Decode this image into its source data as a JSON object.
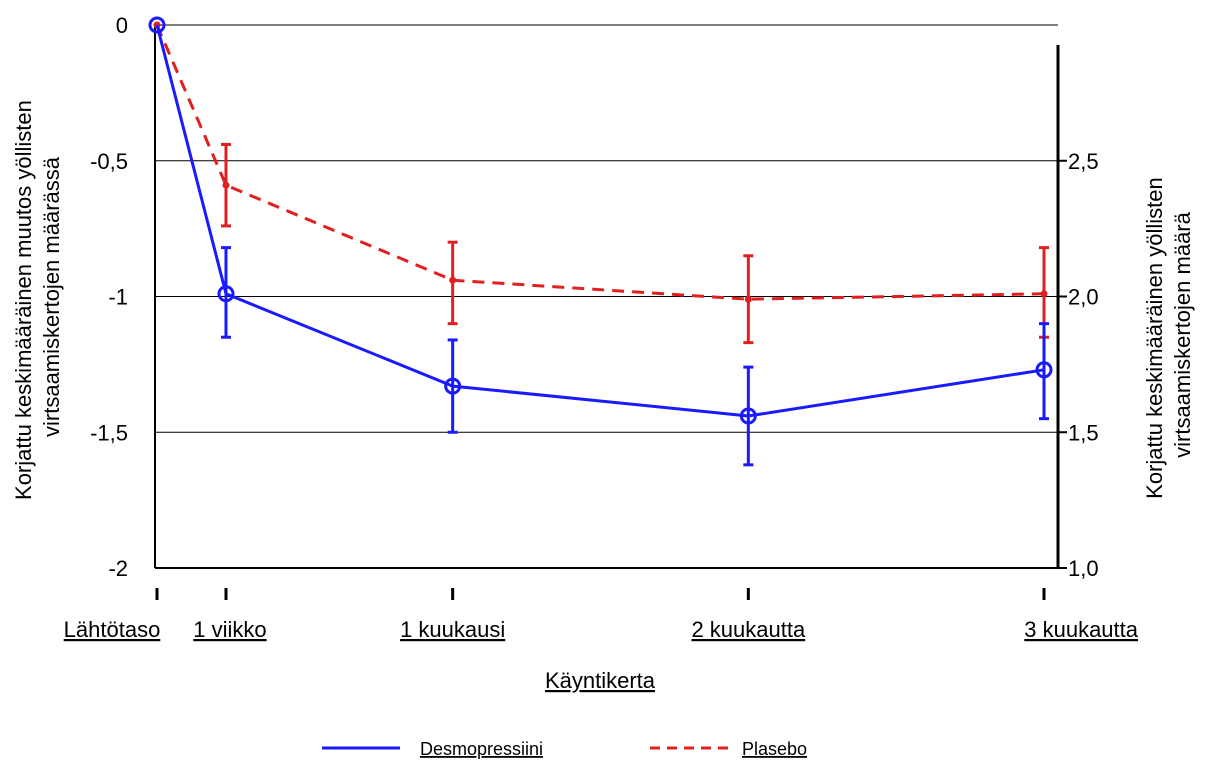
{
  "chart_data": {
    "type": "line",
    "xlabel": "Käyntikerta",
    "ylabel_left_line1": "Korjattu keskimääräinen muutos yöllisten",
    "ylabel_left_line2": "virtsaamiskertojen määrässä",
    "ylabel_right_line1": "Korjattu keskimääräinen yöllisten",
    "ylabel_right_line2": "virtsaamiskertojen määrä",
    "categories": [
      "Lähtötaso",
      "1 viikko",
      "1 kuukausi",
      "2 kuukautta",
      "3 kuukautta"
    ],
    "x_days": [
      0,
      7,
      30,
      60,
      90
    ],
    "y_left": {
      "min": -2,
      "max": 0,
      "ticks": [
        0,
        -0.5,
        -1,
        -1.5,
        -2
      ],
      "tick_labels": [
        "0",
        "-0,5",
        "-1",
        "-1,5",
        "-2"
      ]
    },
    "y_right": {
      "min": 1.0,
      "max": 2.9,
      "ticks": [
        2.5,
        2.0,
        1.5,
        1.0
      ],
      "tick_labels": [
        "2,5",
        "2,0",
        "1,5",
        "1,0"
      ]
    },
    "grid": true,
    "legend_position": "bottom",
    "series": [
      {
        "name": "Desmopressiini",
        "color": "#1a1aff",
        "dash": "solid",
        "marker": "circle",
        "values": [
          0,
          -0.99,
          -1.33,
          -1.44,
          -1.27
        ],
        "err_low": [
          0,
          -1.15,
          -1.5,
          -1.62,
          -1.45
        ],
        "err_high": [
          0,
          -0.82,
          -1.16,
          -1.26,
          -1.1
        ]
      },
      {
        "name": "Plasebo",
        "color": "#e02020",
        "dash": "dashed",
        "marker": "dot",
        "values": [
          0,
          -0.59,
          -0.94,
          -1.01,
          -0.99
        ],
        "err_low": [
          0,
          -0.74,
          -1.1,
          -1.17,
          -1.15
        ],
        "err_high": [
          0,
          -0.44,
          -0.8,
          -0.85,
          -0.82
        ]
      }
    ]
  }
}
